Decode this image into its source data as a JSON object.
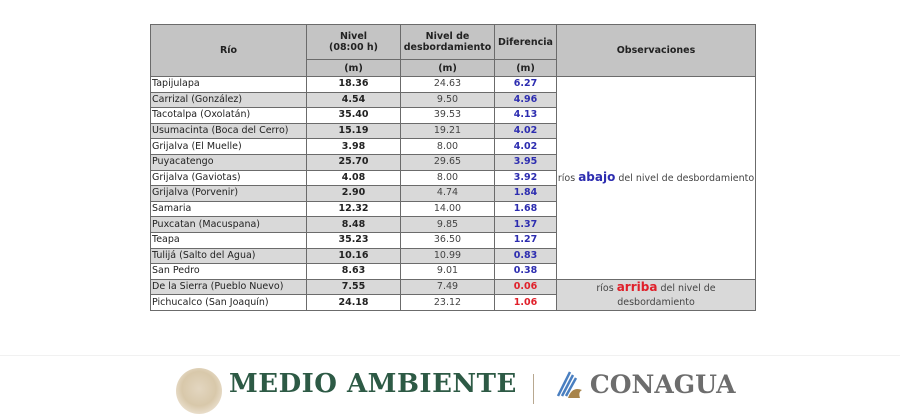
{
  "table": {
    "headers": {
      "river": "Río",
      "level": "Nivel\n(08:00 h)",
      "level_line1": "Nivel",
      "level_line2": "(08:00 h)",
      "overflow_line1": "Nivel de",
      "overflow_line2": "desbordamiento",
      "difference": "Diferencia",
      "observations": "Observaciones",
      "unit_level": "(m)",
      "unit_overflow": "(m)",
      "unit_difference": "(m)"
    },
    "rows": [
      {
        "river": "Tapijulapa",
        "level": "18.36",
        "overflow": "24.63",
        "difference": "6.27",
        "status": "below"
      },
      {
        "river": "Carrizal (González)",
        "level": "4.54",
        "overflow": "9.50",
        "difference": "4.96",
        "status": "below"
      },
      {
        "river": "Tacotalpa (Oxolatán)",
        "level": "35.40",
        "overflow": "39.53",
        "difference": "4.13",
        "status": "below"
      },
      {
        "river": "Usumacinta (Boca del Cerro)",
        "level": "15.19",
        "overflow": "19.21",
        "difference": "4.02",
        "status": "below"
      },
      {
        "river": "Grijalva (El Muelle)",
        "level": "3.98",
        "overflow": "8.00",
        "difference": "4.02",
        "status": "below"
      },
      {
        "river": "Puyacatengo",
        "level": "25.70",
        "overflow": "29.65",
        "difference": "3.95",
        "status": "below"
      },
      {
        "river": "Grijalva (Gaviotas)",
        "level": "4.08",
        "overflow": "8.00",
        "difference": "3.92",
        "status": "below"
      },
      {
        "river": "Grijalva (Porvenir)",
        "level": "2.90",
        "overflow": "4.74",
        "difference": "1.84",
        "status": "below"
      },
      {
        "river": "Samaria",
        "level": "12.32",
        "overflow": "14.00",
        "difference": "1.68",
        "status": "below"
      },
      {
        "river": "Puxcatan (Macuspana)",
        "level": "8.48",
        "overflow": "9.85",
        "difference": "1.37",
        "status": "below"
      },
      {
        "river": "Teapa",
        "level": "35.23",
        "overflow": "36.50",
        "difference": "1.27",
        "status": "below"
      },
      {
        "river": "Tulijá (Salto del Agua)",
        "level": "10.16",
        "overflow": "10.99",
        "difference": "0.83",
        "status": "below"
      },
      {
        "river": "San Pedro",
        "level": "8.63",
        "overflow": "9.01",
        "difference": "0.38",
        "status": "below"
      },
      {
        "river": "De la Sierra (Pueblo Nuevo)",
        "level": "7.55",
        "overflow": "7.49",
        "difference": "0.06",
        "status": "above"
      },
      {
        "river": "Pichucalco (San Joaquín)",
        "level": "24.18",
        "overflow": "23.12",
        "difference": "1.06",
        "status": "above"
      }
    ],
    "observations": {
      "below": {
        "prefix": "ríos ",
        "keyword": "abajo",
        "suffix": " del nivel de desbordamiento"
      },
      "above": {
        "prefix": "ríos ",
        "keyword": "arriba",
        "suffix": " del nivel de desbordamiento"
      }
    }
  },
  "colors": {
    "below": "#2d2db0",
    "above": "#e0202a",
    "header_bg": "#c4c4c4",
    "alt_row_bg": "#d9d9d9",
    "medio_green": "#2d5a45"
  },
  "footer": {
    "left_logo_text": "MEDIO AMBIENTE",
    "right_logo_text": "CONAGUA"
  }
}
